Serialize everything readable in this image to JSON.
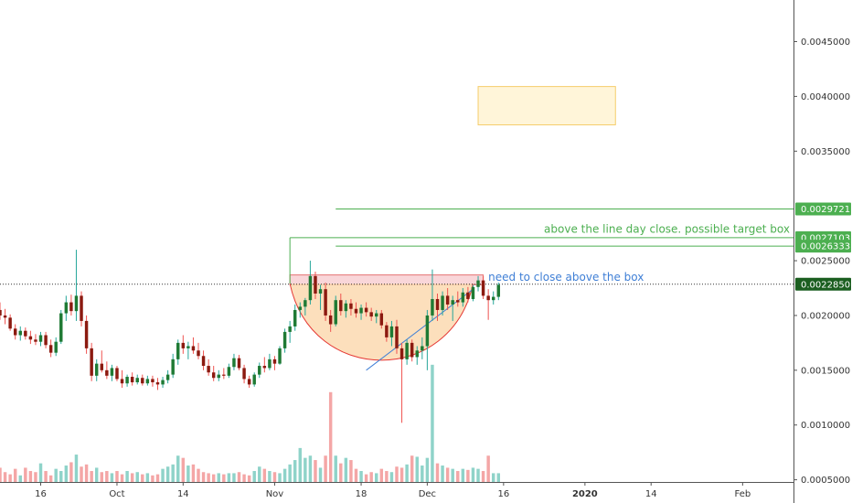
{
  "chart_data": {
    "type": "candlestick",
    "y_axis": {
      "ylim": [
        0.00048,
        0.00488
      ],
      "scale": "linear",
      "position": "right",
      "tick_labels": [
        "0.0045000",
        "0.0040000",
        "0.0035000",
        "0.0025000",
        "0.0020000",
        "0.0015000",
        "0.0010000",
        "0.0005000"
      ],
      "tick_values": [
        0.0045,
        0.004,
        0.0035,
        0.0025,
        0.002,
        0.0015,
        0.001,
        0.0005
      ]
    },
    "x_axis": {
      "tick_labels": [
        "16",
        "Oct",
        "14",
        "Nov",
        "18",
        "Dec",
        "16",
        "2020",
        "14",
        "Feb"
      ],
      "tick_dates": [
        "2019-09-16",
        "2019-10-01",
        "2019-10-14",
        "2019-11-01",
        "2019-11-18",
        "2019-12-01",
        "2019-12-16",
        "2020-01-01",
        "2020-01-14",
        "2020-02-01"
      ],
      "date_range": [
        "2019-09-08",
        "2020-02-11"
      ],
      "bold_labels": [
        "2020"
      ]
    },
    "price_badges": [
      {
        "label": "0.0029721",
        "value": 0.0029721,
        "color": "#4caf50"
      },
      {
        "label": "0.0027103",
        "value": 0.0027103,
        "color": "#4caf50"
      },
      {
        "label": "0.0026333",
        "value": 0.0026333,
        "color": "#4caf50"
      },
      {
        "label": "0.0022850",
        "value": 0.002285,
        "color": "#1b5e20"
      }
    ],
    "current_price": 0.002285,
    "horizontal_lines": [
      {
        "value": 0.0029721,
        "from": "2019-11-13",
        "color": "#4caf50"
      },
      {
        "value": 0.0027103,
        "from": "2019-11-04",
        "color": "#4caf50"
      },
      {
        "value": 0.0026333,
        "from": "2019-11-13",
        "color": "#4caf50"
      }
    ],
    "annotations": [
      {
        "text": "above the line day close. possible target box",
        "value": 0.00274,
        "color": "#4caf50"
      },
      {
        "text": "need to close above the box",
        "value": 0.00235,
        "color": "#3f7fd6"
      }
    ],
    "boxes": [
      {
        "name": "resistance-box",
        "date_from": "2019-11-04",
        "date_to": "2019-12-12",
        "top": 0.00237,
        "bottom": 0.00228,
        "fill": "#f9d6d9",
        "stroke": "#e57373"
      },
      {
        "name": "target-box",
        "date_from": "2019-12-11",
        "date_to": "2020-01-07",
        "top": 0.00409,
        "bottom": 0.00374,
        "fill": "#fff5d9",
        "stroke": "#f5cd6b"
      }
    ],
    "cup": {
      "date_from": "2019-11-04",
      "date_to": "2019-12-10",
      "rim": 0.00229,
      "bottom": 0.0016,
      "fill": "#fbd9b0",
      "stroke": "#e53935"
    },
    "trendline": {
      "from_date": "2019-11-19",
      "from_value": 0.0015,
      "to_date": "2019-12-10",
      "to_value": 0.00224,
      "color": "#3f7fd6"
    },
    "vertical_marker": {
      "date": "2019-11-04",
      "top": 0.00271,
      "bottom": 0.00229,
      "color": "#4caf50"
    },
    "candles": {
      "start_date": "2019-09-08",
      "colors": {
        "up": "#26a69a",
        "down": "#ef5350",
        "up_body": "#1f7a34",
        "down_body": "#8b1a10",
        "up_volume": "#8fd3c9",
        "down_volume": "#f4a6a6"
      },
      "ohlc": [
        [
          0.00205,
          0.00212,
          0.00196,
          0.002
        ],
        [
          0.002,
          0.00206,
          0.00192,
          0.00198
        ],
        [
          0.00198,
          0.00201,
          0.00186,
          0.00188
        ],
        [
          0.00188,
          0.00192,
          0.00178,
          0.00182
        ],
        [
          0.00182,
          0.0019,
          0.00177,
          0.00186
        ],
        [
          0.00186,
          0.00189,
          0.00178,
          0.00181
        ],
        [
          0.00181,
          0.00186,
          0.00174,
          0.00178
        ],
        [
          0.00178,
          0.00183,
          0.00173,
          0.00176
        ],
        [
          0.00176,
          0.00185,
          0.00172,
          0.00182
        ],
        [
          0.00182,
          0.00185,
          0.0017,
          0.00173
        ],
        [
          0.00173,
          0.00178,
          0.00162,
          0.00166
        ],
        [
          0.00166,
          0.0018,
          0.00163,
          0.00176
        ],
        [
          0.00176,
          0.00205,
          0.00174,
          0.00202
        ],
        [
          0.00202,
          0.00218,
          0.00195,
          0.00212
        ],
        [
          0.00212,
          0.00219,
          0.002,
          0.00204
        ],
        [
          0.00204,
          0.0026,
          0.00195,
          0.00218
        ],
        [
          0.00218,
          0.00222,
          0.0019,
          0.00195
        ],
        [
          0.00195,
          0.002,
          0.00165,
          0.0017
        ],
        [
          0.0017,
          0.00175,
          0.0014,
          0.00145
        ],
        [
          0.00145,
          0.0016,
          0.0014,
          0.00156
        ],
        [
          0.00156,
          0.00168,
          0.00148,
          0.0015
        ],
        [
          0.0015,
          0.00158,
          0.00142,
          0.00145
        ],
        [
          0.00145,
          0.00155,
          0.0014,
          0.00152
        ],
        [
          0.00152,
          0.00154,
          0.0014,
          0.00142
        ],
        [
          0.00142,
          0.0015,
          0.00134,
          0.00138
        ],
        [
          0.00138,
          0.00146,
          0.00135,
          0.00144
        ],
        [
          0.00144,
          0.00148,
          0.00136,
          0.00139
        ],
        [
          0.00139,
          0.00146,
          0.00137,
          0.00143
        ],
        [
          0.00143,
          0.00146,
          0.00136,
          0.00138
        ],
        [
          0.00138,
          0.00145,
          0.00136,
          0.00142
        ],
        [
          0.00142,
          0.00145,
          0.00135,
          0.00139
        ],
        [
          0.00139,
          0.00143,
          0.00132,
          0.00137
        ],
        [
          0.00137,
          0.00144,
          0.00134,
          0.00141
        ],
        [
          0.00141,
          0.0015,
          0.00138,
          0.00146
        ],
        [
          0.00146,
          0.00165,
          0.00143,
          0.0016
        ],
        [
          0.0016,
          0.00178,
          0.00155,
          0.00175
        ],
        [
          0.00175,
          0.00182,
          0.00165,
          0.0017
        ],
        [
          0.0017,
          0.00176,
          0.0016,
          0.00172
        ],
        [
          0.00172,
          0.0018,
          0.00165,
          0.00168
        ],
        [
          0.00168,
          0.00175,
          0.0016,
          0.00163
        ],
        [
          0.00163,
          0.00168,
          0.0015,
          0.00154
        ],
        [
          0.00154,
          0.0016,
          0.00145,
          0.00148
        ],
        [
          0.00148,
          0.00154,
          0.0014,
          0.00143
        ],
        [
          0.00143,
          0.0015,
          0.0014,
          0.00146
        ],
        [
          0.00146,
          0.00152,
          0.00142,
          0.00145
        ],
        [
          0.00145,
          0.00156,
          0.00143,
          0.00153
        ],
        [
          0.00153,
          0.00165,
          0.0015,
          0.00161
        ],
        [
          0.00161,
          0.00164,
          0.0015,
          0.00152
        ],
        [
          0.00152,
          0.00155,
          0.00138,
          0.00142
        ],
        [
          0.00142,
          0.00145,
          0.00134,
          0.00137
        ],
        [
          0.00137,
          0.00148,
          0.00135,
          0.00146
        ],
        [
          0.00146,
          0.00157,
          0.00143,
          0.00154
        ],
        [
          0.00154,
          0.00162,
          0.00148,
          0.00152
        ],
        [
          0.00152,
          0.00165,
          0.0015,
          0.0016
        ],
        [
          0.0016,
          0.00163,
          0.0015,
          0.00156
        ],
        [
          0.00156,
          0.00172,
          0.00155,
          0.0017
        ],
        [
          0.0017,
          0.00188,
          0.00166,
          0.00185
        ],
        [
          0.00185,
          0.00195,
          0.00175,
          0.0019
        ],
        [
          0.0019,
          0.0021,
          0.00186,
          0.00205
        ],
        [
          0.00205,
          0.00212,
          0.00198,
          0.00208
        ],
        [
          0.00208,
          0.00216,
          0.002,
          0.00214
        ],
        [
          0.00214,
          0.0025,
          0.0021,
          0.00236
        ],
        [
          0.00236,
          0.0024,
          0.00215,
          0.0022
        ],
        [
          0.0022,
          0.00228,
          0.00205,
          0.00224
        ],
        [
          0.00224,
          0.0023,
          0.00195,
          0.002
        ],
        [
          0.002,
          0.00205,
          0.00185,
          0.00192
        ],
        [
          0.00192,
          0.00218,
          0.0019,
          0.00214
        ],
        [
          0.00214,
          0.0022,
          0.002,
          0.00204
        ],
        [
          0.00204,
          0.00214,
          0.00198,
          0.00211
        ],
        [
          0.00211,
          0.00215,
          0.002,
          0.00206
        ],
        [
          0.00206,
          0.00212,
          0.00198,
          0.00202
        ],
        [
          0.00202,
          0.0021,
          0.00196,
          0.00207
        ],
        [
          0.00207,
          0.00212,
          0.00199,
          0.00203
        ],
        [
          0.00203,
          0.00207,
          0.00195,
          0.00199
        ],
        [
          0.00199,
          0.00205,
          0.00193,
          0.00202
        ],
        [
          0.00202,
          0.00205,
          0.00188,
          0.00191
        ],
        [
          0.00191,
          0.00194,
          0.00176,
          0.0018
        ],
        [
          0.0018,
          0.00195,
          0.00172,
          0.0019
        ],
        [
          0.0019,
          0.00196,
          0.00165,
          0.0017
        ],
        [
          0.0017,
          0.00175,
          0.00102,
          0.0016
        ],
        [
          0.0016,
          0.00178,
          0.00155,
          0.00175
        ],
        [
          0.00175,
          0.00178,
          0.00158,
          0.00162
        ],
        [
          0.00162,
          0.00172,
          0.00155,
          0.00168
        ],
        [
          0.00168,
          0.0018,
          0.0016,
          0.00172
        ],
        [
          0.00172,
          0.00205,
          0.0015,
          0.002
        ],
        [
          0.002,
          0.00242,
          0.00195,
          0.00215
        ],
        [
          0.00215,
          0.0022,
          0.00195,
          0.00205
        ],
        [
          0.00205,
          0.00222,
          0.002,
          0.00218
        ],
        [
          0.00218,
          0.00225,
          0.00205,
          0.0021
        ],
        [
          0.0021,
          0.00218,
          0.00195,
          0.00214
        ],
        [
          0.00214,
          0.00222,
          0.00208,
          0.00212
        ],
        [
          0.00212,
          0.00225,
          0.00208,
          0.00221
        ],
        [
          0.00221,
          0.00226,
          0.00212,
          0.00215
        ],
        [
          0.00215,
          0.00228,
          0.00213,
          0.00226
        ],
        [
          0.00226,
          0.00236,
          0.00222,
          0.00232
        ],
        [
          0.00232,
          0.00236,
          0.00215,
          0.00218
        ],
        [
          0.00218,
          0.00224,
          0.00196,
          0.00214
        ],
        [
          0.00214,
          0.00222,
          0.0021,
          0.00217
        ],
        [
          0.00217,
          0.0023,
          0.00214,
          0.00228
        ]
      ],
      "volume": [
        0.00061,
        0.00057,
        0.00055,
        0.0006,
        0.00054,
        0.00061,
        0.00058,
        0.00057,
        0.00065,
        0.00058,
        0.00054,
        0.0006,
        0.00058,
        0.00063,
        0.00066,
        0.00073,
        0.00062,
        0.00064,
        0.00058,
        0.00061,
        0.00057,
        0.00058,
        0.00056,
        0.00058,
        0.00055,
        0.00058,
        0.00056,
        0.00057,
        0.00055,
        0.00056,
        0.00054,
        0.00055,
        0.0006,
        0.00062,
        0.00064,
        0.00072,
        0.0007,
        0.00063,
        0.00064,
        0.0006,
        0.00057,
        0.00056,
        0.00055,
        0.00056,
        0.00055,
        0.00056,
        0.00056,
        0.00057,
        0.00055,
        0.00054,
        0.00058,
        0.00062,
        0.0006,
        0.00058,
        0.00057,
        0.00056,
        0.0006,
        0.00064,
        0.00068,
        0.00079,
        0.0007,
        0.00072,
        0.00068,
        0.00061,
        0.00072,
        0.0013,
        0.00072,
        0.00065,
        0.0007,
        0.00068,
        0.0006,
        0.00058,
        0.00055,
        0.00057,
        0.00056,
        0.0006,
        0.00058,
        0.00057,
        0.00062,
        0.00061,
        0.00064,
        0.00072,
        0.00071,
        0.00063,
        0.0007,
        0.00155,
        0.00065,
        0.00063,
        0.00061,
        0.0006,
        0.00058,
        0.0006,
        0.00059,
        0.00061,
        0.0006,
        0.00058,
        0.00072,
        0.00056,
        0.00056
      ]
    }
  }
}
